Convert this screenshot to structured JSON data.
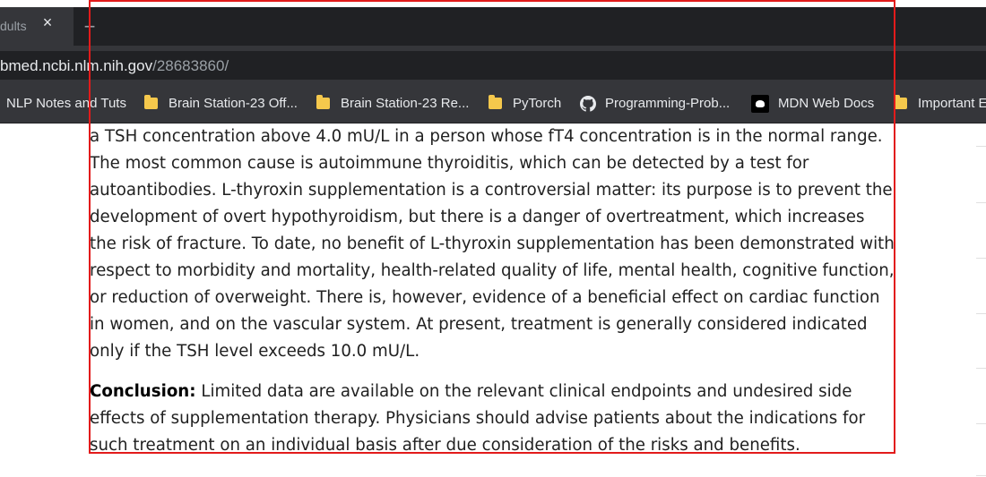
{
  "browser": {
    "tab": {
      "title": "dults",
      "close_icon": "×",
      "new_tab_icon": "+"
    },
    "address_bar": {
      "host": "bmed.ncbi.nlm.nih.gov",
      "path": "/28683860/"
    },
    "bookmarks": [
      {
        "label": "NLP Notes and Tuts",
        "icon": "none"
      },
      {
        "label": "Brain Station-23 Off...",
        "icon": "folder-icon"
      },
      {
        "label": "Brain Station-23 Re...",
        "icon": "folder-icon"
      },
      {
        "label": "PyTorch",
        "icon": "folder-icon"
      },
      {
        "label": "Programming-Prob...",
        "icon": "github-icon"
      },
      {
        "label": "MDN Web Docs",
        "icon": "mdn-icon"
      },
      {
        "label": "Important E",
        "icon": "folder-icon"
      }
    ]
  },
  "article": {
    "paragraph1": "a TSH concentration above 4.0 mU/L in a person whose fT4 concentration is in the normal range. The most common cause is autoimmune thyroiditis, which can be detected by a test for autoantibodies. L-thyroxin supplementation is a controversial matter: its purpose is to prevent the development of overt hypothyroidism, but there is a danger of overtreatment, which increases the risk of fracture. To date, no benefit of L-thyroxin supplementation has been demonstrated with respect to morbidity and mortality, health-related quality of life, mental health, cognitive function, or reduction of overweight. There is, however, evidence of a beneficial effect on cardiac function in women, and on the vascular system. At present, treatment is generally considered indicated only if the TSH level exceeds 10.0 mU/L.",
    "conclusion_label": "Conclusion:",
    "conclusion_text": " Limited data are available on the relevant clinical endpoints and undesired side effects of supplementation therapy. Physicians should advise patients about the indications for such treatment on an individual basis after due consideration of the risks and benefits."
  },
  "colors": {
    "selection_border": "#e21b1b",
    "toolbar": "#35363a",
    "tab_strip": "#202124",
    "folder": "#f5c84c"
  }
}
